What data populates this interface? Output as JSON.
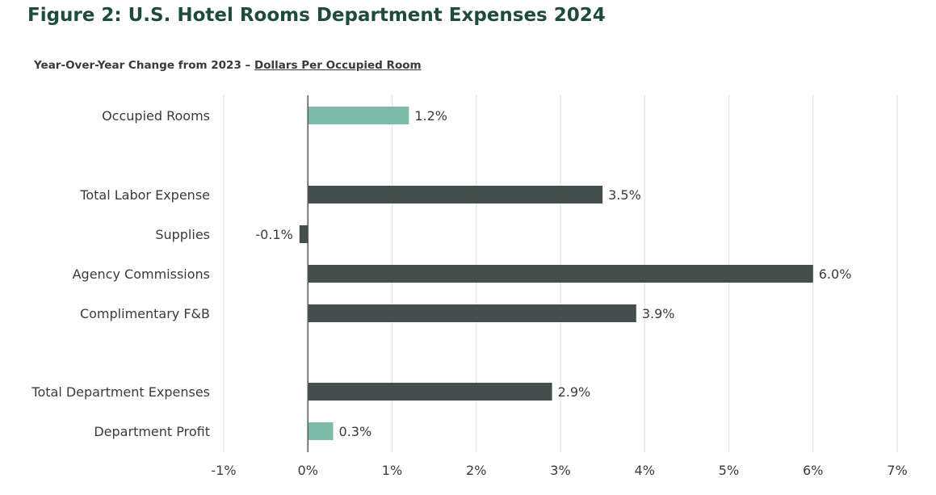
{
  "header": {
    "title": "Figure 2: U.S. Hotel Rooms Department Expenses 2024",
    "subtitle_prefix": "Year-Over-Year Change from 2023 – ",
    "subtitle_link": "Dollars Per Occupied Room"
  },
  "chart_data": {
    "type": "bar",
    "orientation": "horizontal",
    "title": "Figure 2: U.S. Hotel Rooms Department Expenses 2024",
    "subtitle": "Year-Over-Year Change from 2023 – Dollars Per Occupied Room",
    "xlabel": "",
    "ylabel": "",
    "xlim": [
      -1,
      7
    ],
    "ticks": [
      -1,
      0,
      1,
      2,
      3,
      4,
      5,
      6,
      7
    ],
    "tick_labels": [
      "-1%",
      "0%",
      "1%",
      "2%",
      "3%",
      "4%",
      "5%",
      "6%",
      "7%"
    ],
    "grid": "vertical",
    "categories": [
      "Occupied Rooms",
      "Total Labor Expense",
      "Supplies",
      "Agency Commissions",
      "Complimentary F&B",
      "Total Department Expenses",
      "Department Profit"
    ],
    "values": [
      1.2,
      3.5,
      -0.1,
      6.0,
      3.9,
      2.9,
      0.3
    ],
    "value_labels": [
      "1.2%",
      "3.5%",
      "-0.1%",
      "6.0%",
      "3.9%",
      "2.9%",
      "0.3%"
    ],
    "highlighted": [
      true,
      false,
      false,
      false,
      false,
      false,
      true
    ],
    "colors": {
      "highlight": "#7dbaa8",
      "default": "#434f4d",
      "grid": "#e3e3e3",
      "axis": "#555555"
    }
  }
}
